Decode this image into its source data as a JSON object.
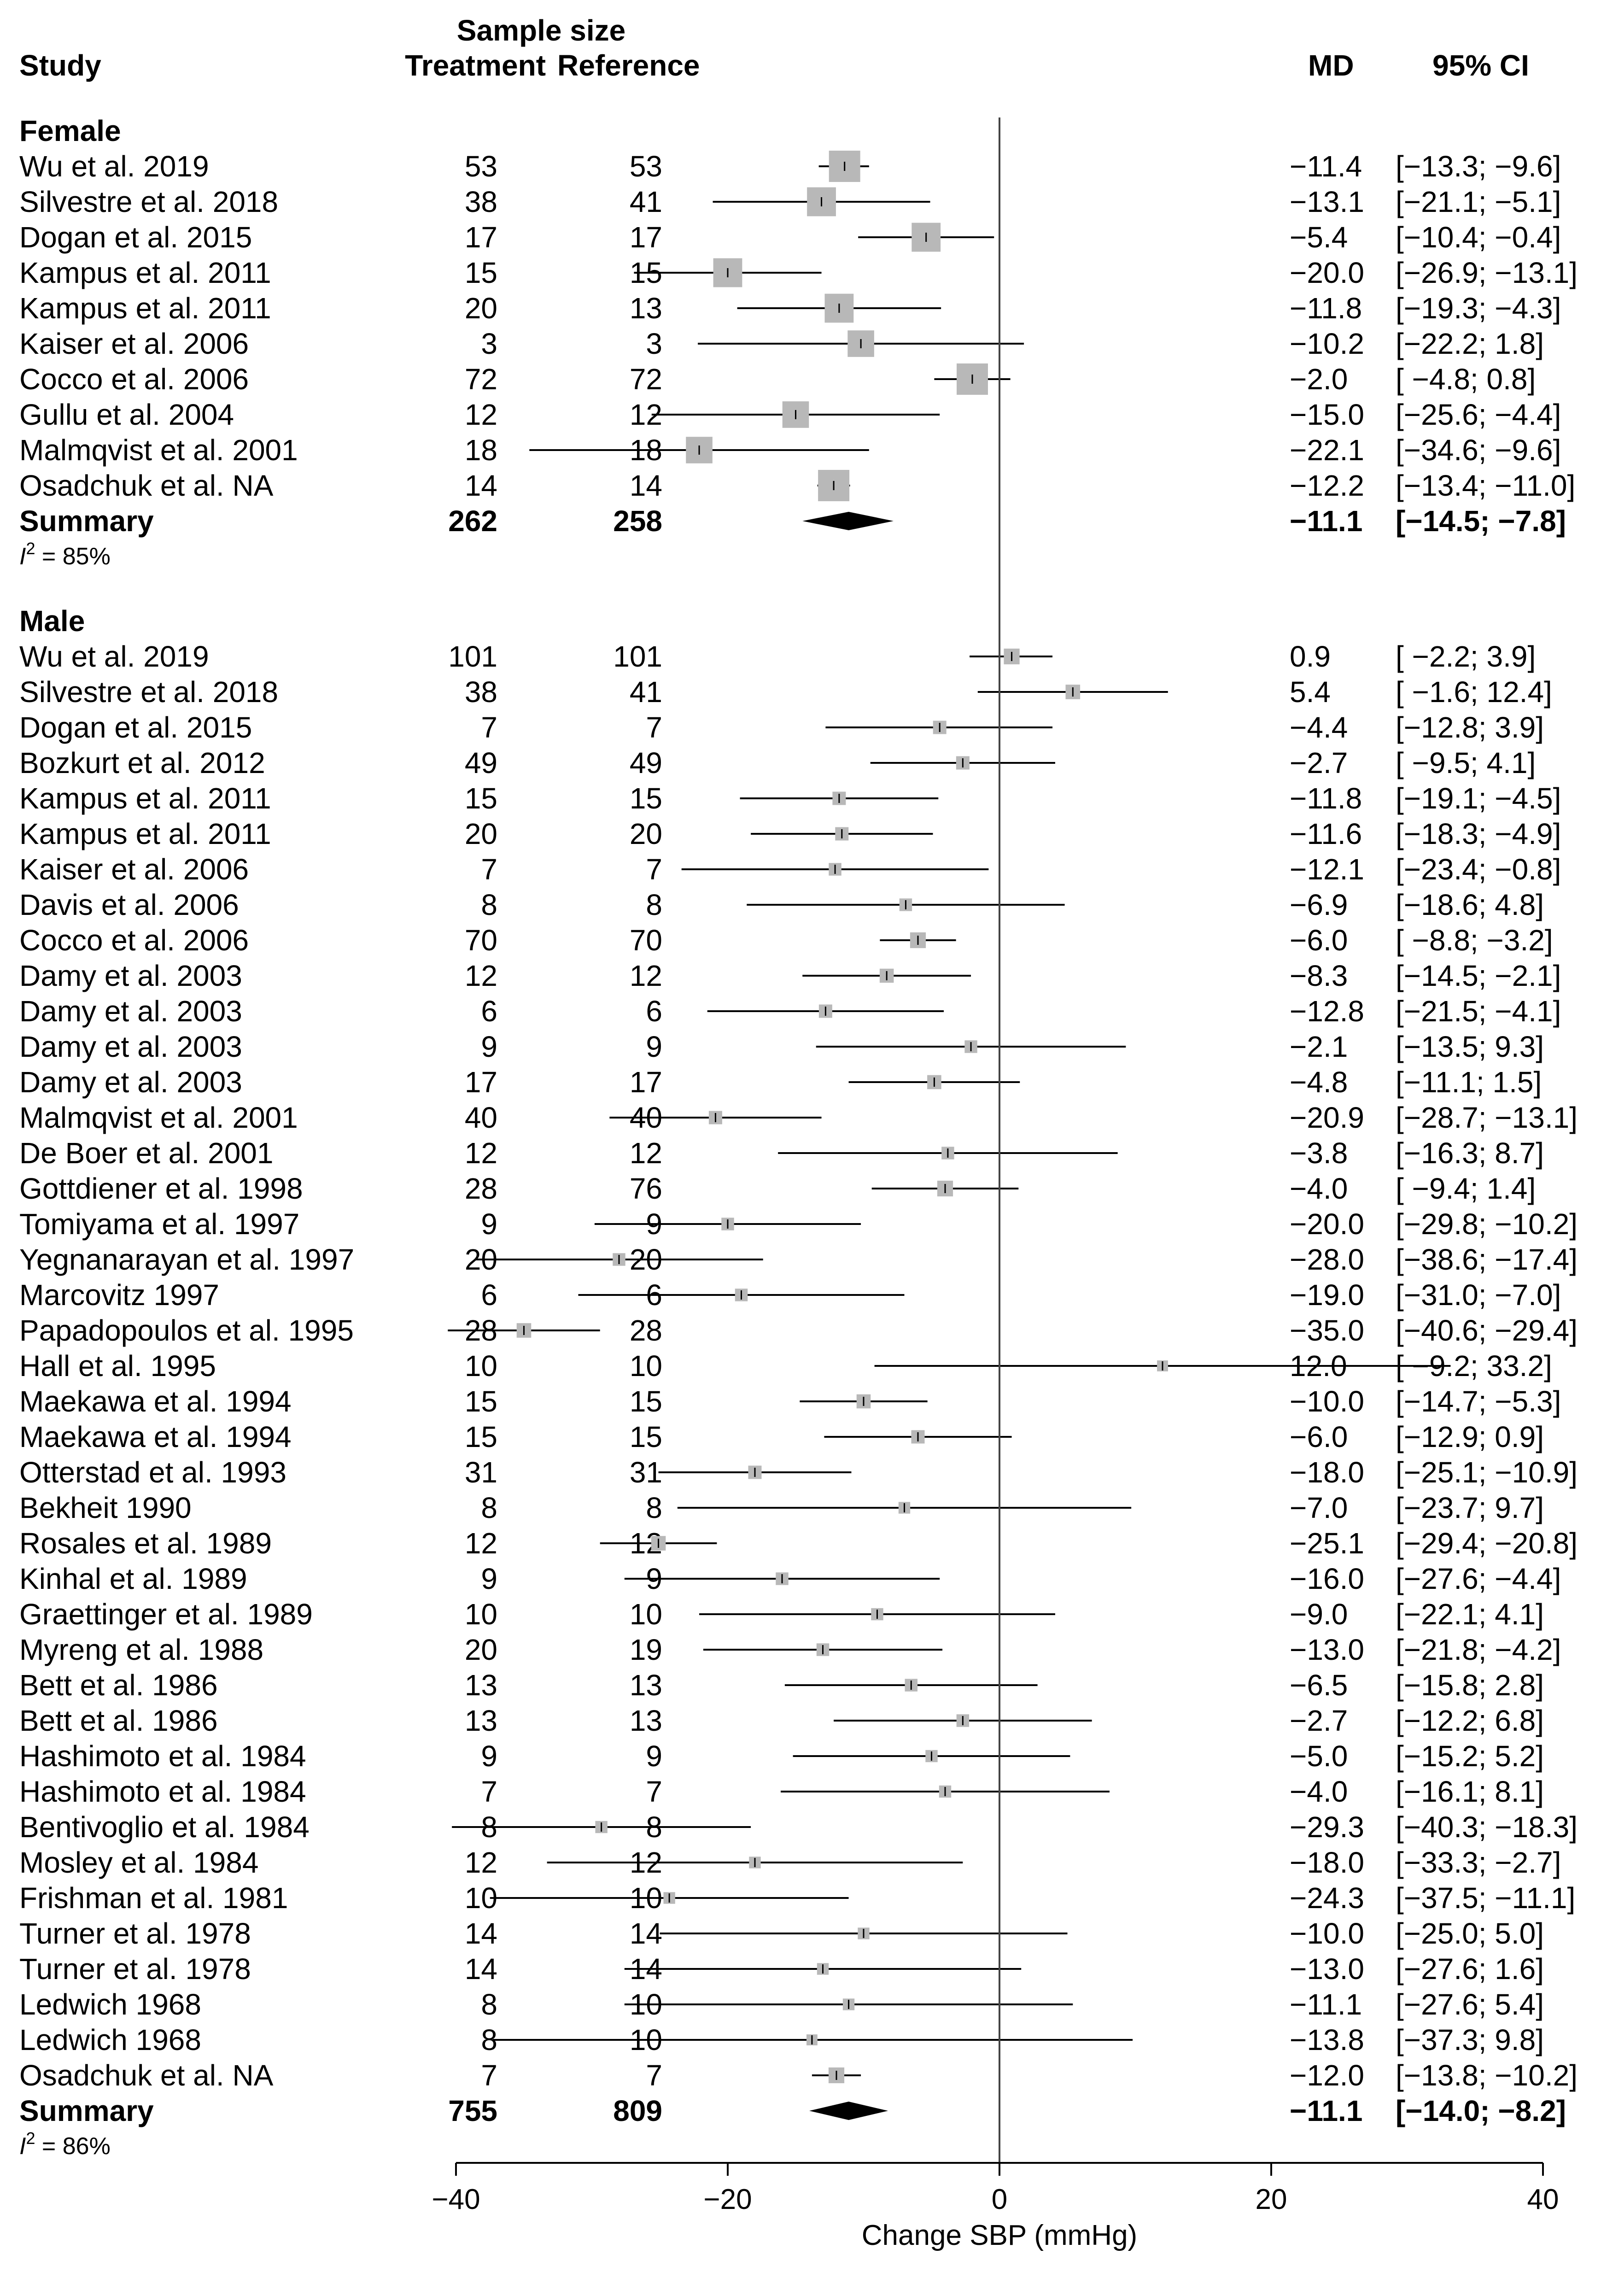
{
  "chart_data": {
    "type": "forest",
    "header": {
      "sample_size": "Sample size",
      "study": "Study",
      "treatment": "Treatment",
      "reference": "Reference",
      "md": "MD",
      "ci": "95% CI"
    },
    "xlabel": "Change SBP (mmHg)",
    "xlim": [
      -40,
      40
    ],
    "xticks": [
      "−40",
      "−20",
      "0",
      "20",
      "40"
    ],
    "groups": [
      {
        "name": "Female",
        "studies": [
          {
            "study": "Wu et al. 2019",
            "treatment": "53",
            "reference": "53",
            "md": -11.4,
            "lo": -13.3,
            "hi": -9.6,
            "weight": 1.0,
            "md_text": "−11.4",
            "ci_text": "[−13.3; −9.6]"
          },
          {
            "study": "Silvestre et al. 2018",
            "treatment": "38",
            "reference": "41",
            "md": -13.1,
            "lo": -21.1,
            "hi": -5.1,
            "weight": 0.9,
            "md_text": "−13.1",
            "ci_text": "[−21.1; −5.1]"
          },
          {
            "study": "Dogan et al. 2015",
            "treatment": "17",
            "reference": "17",
            "md": -5.4,
            "lo": -10.4,
            "hi": -0.4,
            "weight": 0.9,
            "md_text": "−5.4",
            "ci_text": "[−10.4; −0.4]"
          },
          {
            "study": "Kampus et al. 2011",
            "treatment": "15",
            "reference": "15",
            "md": -20.0,
            "lo": -26.9,
            "hi": -13.1,
            "weight": 0.9,
            "md_text": "−20.0",
            "ci_text": "[−26.9; −13.1]"
          },
          {
            "study": "Kampus et al. 2011",
            "treatment": "20",
            "reference": "13",
            "md": -11.8,
            "lo": -19.3,
            "hi": -4.3,
            "weight": 0.9,
            "md_text": "−11.8",
            "ci_text": "[−19.3; −4.3]"
          },
          {
            "study": "Kaiser et al. 2006",
            "treatment": "3",
            "reference": "3",
            "md": -10.2,
            "lo": -22.2,
            "hi": 1.8,
            "weight": 0.8,
            "md_text": "−10.2",
            "ci_text": "[−22.2; 1.8]"
          },
          {
            "study": "Cocco et al. 2006",
            "treatment": "72",
            "reference": "72",
            "md": -2.0,
            "lo": -4.8,
            "hi": 0.8,
            "weight": 1.0,
            "md_text": "−2.0",
            "ci_text": "[ −4.8; 0.8]"
          },
          {
            "study": "Gullu et al. 2004",
            "treatment": "12",
            "reference": "12",
            "md": -15.0,
            "lo": -25.6,
            "hi": -4.4,
            "weight": 0.8,
            "md_text": "−15.0",
            "ci_text": "[−25.6; −4.4]"
          },
          {
            "study": "Malmqvist et al. 2001",
            "treatment": "18",
            "reference": "18",
            "md": -22.1,
            "lo": -34.6,
            "hi": -9.6,
            "weight": 0.8,
            "md_text": "−22.1",
            "ci_text": "[−34.6; −9.6]"
          },
          {
            "study": "Osadchuk et al. NA",
            "treatment": "14",
            "reference": "14",
            "md": -12.2,
            "lo": -13.4,
            "hi": -11.0,
            "weight": 1.0,
            "md_text": "−12.2",
            "ci_text": "[−13.4; −11.0]"
          }
        ],
        "summary": {
          "label": "Summary",
          "treatment": "262",
          "reference": "258",
          "md": -11.1,
          "lo": -14.5,
          "hi": -7.8,
          "md_text": "−11.1",
          "ci_text": "[−14.5; −7.8]"
        },
        "i2": "85%"
      },
      {
        "name": "Male",
        "studies": [
          {
            "study": "Wu et al. 2019",
            "treatment": "101",
            "reference": "101",
            "md": 0.9,
            "lo": -2.2,
            "hi": 3.9,
            "weight": 0.35,
            "md_text": "0.9",
            "ci_text": "[ −2.2; 3.9]"
          },
          {
            "study": "Silvestre et al. 2018",
            "treatment": "38",
            "reference": "41",
            "md": 5.4,
            "lo": -1.6,
            "hi": 12.4,
            "weight": 0.3,
            "md_text": "5.4",
            "ci_text": "[ −1.6; 12.4]"
          },
          {
            "study": "Dogan et al. 2015",
            "treatment": "7",
            "reference": "7",
            "md": -4.4,
            "lo": -12.8,
            "hi": 3.9,
            "weight": 0.25,
            "md_text": "−4.4",
            "ci_text": "[−12.8; 3.9]"
          },
          {
            "study": "Bozkurt et al. 2012",
            "treatment": "49",
            "reference": "49",
            "md": -2.7,
            "lo": -9.5,
            "hi": 4.1,
            "weight": 0.25,
            "md_text": "−2.7",
            "ci_text": "[ −9.5; 4.1]"
          },
          {
            "study": "Kampus et al. 2011",
            "treatment": "15",
            "reference": "15",
            "md": -11.8,
            "lo": -19.1,
            "hi": -4.5,
            "weight": 0.25,
            "md_text": "−11.8",
            "ci_text": "[−19.1; −4.5]"
          },
          {
            "study": "Kampus et al. 2011",
            "treatment": "20",
            "reference": "20",
            "md": -11.6,
            "lo": -18.3,
            "hi": -4.9,
            "weight": 0.25,
            "md_text": "−11.6",
            "ci_text": "[−18.3; −4.9]"
          },
          {
            "study": "Kaiser et al. 2006",
            "treatment": "7",
            "reference": "7",
            "md": -12.1,
            "lo": -23.4,
            "hi": -0.8,
            "weight": 0.22,
            "md_text": "−12.1",
            "ci_text": "[−23.4; −0.8]"
          },
          {
            "study": "Davis et al. 2006",
            "treatment": "8",
            "reference": "8",
            "md": -6.9,
            "lo": -18.6,
            "hi": 4.8,
            "weight": 0.22,
            "md_text": "−6.9",
            "ci_text": "[−18.6; 4.8]"
          },
          {
            "study": "Cocco et al. 2006",
            "treatment": "70",
            "reference": "70",
            "md": -6.0,
            "lo": -8.8,
            "hi": -3.2,
            "weight": 0.35,
            "md_text": "−6.0",
            "ci_text": "[ −8.8; −3.2]"
          },
          {
            "study": "Damy et al. 2003",
            "treatment": "12",
            "reference": "12",
            "md": -8.3,
            "lo": -14.5,
            "hi": -2.1,
            "weight": 0.28,
            "md_text": "−8.3",
            "ci_text": "[−14.5; −2.1]"
          },
          {
            "study": "Damy et al. 2003",
            "treatment": "6",
            "reference": "6",
            "md": -12.8,
            "lo": -21.5,
            "hi": -4.1,
            "weight": 0.25,
            "md_text": "−12.8",
            "ci_text": "[−21.5; −4.1]"
          },
          {
            "study": "Damy et al. 2003",
            "treatment": "9",
            "reference": "9",
            "md": -2.1,
            "lo": -13.5,
            "hi": 9.3,
            "weight": 0.22,
            "md_text": "−2.1",
            "ci_text": "[−13.5; 9.3]"
          },
          {
            "study": "Damy et al. 2003",
            "treatment": "17",
            "reference": "17",
            "md": -4.8,
            "lo": -11.1,
            "hi": 1.5,
            "weight": 0.28,
            "md_text": "−4.8",
            "ci_text": "[−11.1; 1.5]"
          },
          {
            "study": "Malmqvist et al. 2001",
            "treatment": "40",
            "reference": "40",
            "md": -20.9,
            "lo": -28.7,
            "hi": -13.1,
            "weight": 0.25,
            "md_text": "−20.9",
            "ci_text": "[−28.7; −13.1]"
          },
          {
            "study": "De Boer et al. 2001",
            "treatment": "12",
            "reference": "12",
            "md": -3.8,
            "lo": -16.3,
            "hi": 8.7,
            "weight": 0.22,
            "md_text": "−3.8",
            "ci_text": "[−16.3; 8.7]"
          },
          {
            "study": "Gottdiener et al. 1998",
            "treatment": "28",
            "reference": "76",
            "md": -4.0,
            "lo": -9.4,
            "hi": 1.4,
            "weight": 0.35,
            "md_text": "−4.0",
            "ci_text": "[ −9.4; 1.4]"
          },
          {
            "study": "Tomiyama et al. 1997",
            "treatment": "9",
            "reference": "9",
            "md": -20.0,
            "lo": -29.8,
            "hi": -10.2,
            "weight": 0.22,
            "md_text": "−20.0",
            "ci_text": "[−29.8; −10.2]"
          },
          {
            "study": "Yegnanarayan et al. 1997",
            "treatment": "20",
            "reference": "20",
            "md": -28.0,
            "lo": -38.6,
            "hi": -17.4,
            "weight": 0.22,
            "md_text": "−28.0",
            "ci_text": "[−38.6; −17.4]"
          },
          {
            "study": "Marcovitz 1997",
            "treatment": "6",
            "reference": "6",
            "md": -19.0,
            "lo": -31.0,
            "hi": -7.0,
            "weight": 0.22,
            "md_text": "−19.0",
            "ci_text": "[−31.0; −7.0]"
          },
          {
            "study": "Papadopoulos et al. 1995",
            "treatment": "28",
            "reference": "28",
            "md": -35.0,
            "lo": -40.6,
            "hi": -29.4,
            "weight": 0.3,
            "md_text": "−35.0",
            "ci_text": "[−40.6; −29.4]"
          },
          {
            "study": "Hall et al. 1995",
            "treatment": "10",
            "reference": "10",
            "md": 12.0,
            "lo": -9.2,
            "hi": 33.2,
            "weight": 0.15,
            "md_text": "12.0",
            "ci_text": "[ −9.2; 33.2]"
          },
          {
            "study": "Maekawa et al. 1994",
            "treatment": "15",
            "reference": "15",
            "md": -10.0,
            "lo": -14.7,
            "hi": -5.3,
            "weight": 0.28,
            "md_text": "−10.0",
            "ci_text": "[−14.7; −5.3]"
          },
          {
            "study": "Maekawa et al. 1994",
            "treatment": "15",
            "reference": "15",
            "md": -6.0,
            "lo": -12.9,
            "hi": 0.9,
            "weight": 0.25,
            "md_text": "−6.0",
            "ci_text": "[−12.9; 0.9]"
          },
          {
            "study": "Otterstad et al. 1993",
            "treatment": "31",
            "reference": "31",
            "md": -18.0,
            "lo": -25.1,
            "hi": -10.9,
            "weight": 0.25,
            "md_text": "−18.0",
            "ci_text": "[−25.1; −10.9]"
          },
          {
            "study": "Bekheit 1990",
            "treatment": "8",
            "reference": "8",
            "md": -7.0,
            "lo": -23.7,
            "hi": 9.7,
            "weight": 0.18,
            "md_text": "−7.0",
            "ci_text": "[−23.7; 9.7]"
          },
          {
            "study": "Rosales et al. 1989",
            "treatment": "12",
            "reference": "12",
            "md": -25.1,
            "lo": -29.4,
            "hi": -20.8,
            "weight": 0.3,
            "md_text": "−25.1",
            "ci_text": "[−29.4; −20.8]"
          },
          {
            "study": "Kinhal et al. 1989",
            "treatment": "9",
            "reference": "9",
            "md": -16.0,
            "lo": -27.6,
            "hi": -4.4,
            "weight": 0.22,
            "md_text": "−16.0",
            "ci_text": "[−27.6; −4.4]"
          },
          {
            "study": "Graettinger et al. 1989",
            "treatment": "10",
            "reference": "10",
            "md": -9.0,
            "lo": -22.1,
            "hi": 4.1,
            "weight": 0.2,
            "md_text": "−9.0",
            "ci_text": "[−22.1; 4.1]"
          },
          {
            "study": "Myreng et al. 1988",
            "treatment": "20",
            "reference": "19",
            "md": -13.0,
            "lo": -21.8,
            "hi": -4.2,
            "weight": 0.22,
            "md_text": "−13.0",
            "ci_text": "[−21.8; −4.2]"
          },
          {
            "study": "Bett et al. 1986",
            "treatment": "13",
            "reference": "13",
            "md": -6.5,
            "lo": -15.8,
            "hi": 2.8,
            "weight": 0.22,
            "md_text": "−6.5",
            "ci_text": "[−15.8; 2.8]"
          },
          {
            "study": "Bett et al. 1986",
            "treatment": "13",
            "reference": "13",
            "md": -2.7,
            "lo": -12.2,
            "hi": 6.8,
            "weight": 0.22,
            "md_text": "−2.7",
            "ci_text": "[−12.2; 6.8]"
          },
          {
            "study": "Hashimoto et al. 1984",
            "treatment": "9",
            "reference": "9",
            "md": -5.0,
            "lo": -15.2,
            "hi": 5.2,
            "weight": 0.2,
            "md_text": "−5.0",
            "ci_text": "[−15.2; 5.2]"
          },
          {
            "study": "Hashimoto et al. 1984",
            "treatment": "7",
            "reference": "7",
            "md": -4.0,
            "lo": -16.1,
            "hi": 8.1,
            "weight": 0.2,
            "md_text": "−4.0",
            "ci_text": "[−16.1; 8.1]"
          },
          {
            "study": "Bentivoglio et al. 1984",
            "treatment": "8",
            "reference": "8",
            "md": -29.3,
            "lo": -40.3,
            "hi": -18.3,
            "weight": 0.2,
            "md_text": "−29.3",
            "ci_text": "[−40.3; −18.3]"
          },
          {
            "study": "Mosley et al. 1984",
            "treatment": "12",
            "reference": "12",
            "md": -18.0,
            "lo": -33.3,
            "hi": -2.7,
            "weight": 0.18,
            "md_text": "−18.0",
            "ci_text": "[−33.3; −2.7]"
          },
          {
            "study": "Frishman et al. 1981",
            "treatment": "10",
            "reference": "10",
            "md": -24.3,
            "lo": -37.5,
            "hi": -11.1,
            "weight": 0.18,
            "md_text": "−24.3",
            "ci_text": "[−37.5; −11.1]"
          },
          {
            "study": "Turner et al. 1978",
            "treatment": "14",
            "reference": "14",
            "md": -10.0,
            "lo": -25.0,
            "hi": 5.0,
            "weight": 0.18,
            "md_text": "−10.0",
            "ci_text": "[−25.0; 5.0]"
          },
          {
            "study": "Turner et al. 1978",
            "treatment": "14",
            "reference": "14",
            "md": -13.0,
            "lo": -27.6,
            "hi": 1.6,
            "weight": 0.18,
            "md_text": "−13.0",
            "ci_text": "[−27.6; 1.6]"
          },
          {
            "study": "Ledwich 1968",
            "treatment": "8",
            "reference": "10",
            "md": -11.1,
            "lo": -27.6,
            "hi": 5.4,
            "weight": 0.18,
            "md_text": "−11.1",
            "ci_text": "[−27.6; 5.4]"
          },
          {
            "study": "Ledwich 1968",
            "treatment": "8",
            "reference": "10",
            "md": -13.8,
            "lo": -37.3,
            "hi": 9.8,
            "weight": 0.15,
            "md_text": "−13.8",
            "ci_text": "[−37.3; 9.8]"
          },
          {
            "study": "Osadchuk et al. NA",
            "treatment": "7",
            "reference": "7",
            "md": -12.0,
            "lo": -13.8,
            "hi": -10.2,
            "weight": 0.35,
            "md_text": "−12.0",
            "ci_text": "[−13.8; −10.2]"
          }
        ],
        "summary": {
          "label": "Summary",
          "treatment": "755",
          "reference": "809",
          "md": -11.1,
          "lo": -14.0,
          "hi": -8.2,
          "md_text": "−11.1",
          "ci_text": "[−14.0; −8.2]"
        },
        "i2": "86%"
      }
    ]
  }
}
